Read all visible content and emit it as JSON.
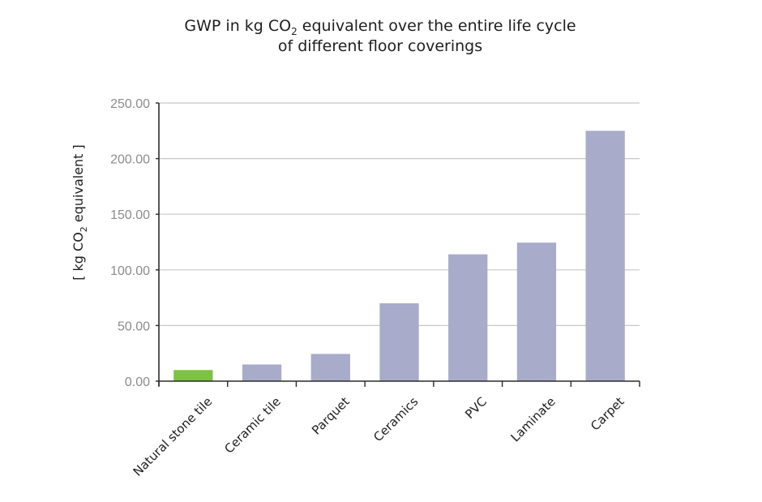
{
  "chart_data": {
    "type": "bar",
    "title": {
      "line1_before_sub": "GWP in kg CO",
      "line1_sub": "2",
      "line1_after_sub": " equivalent over the entire life cycle",
      "line2": "of different floor coverings"
    },
    "ylabel": {
      "before_sub": "[ kg CO",
      "sub": "2",
      "after_sub": " equivalent ]"
    },
    "xlabel": "",
    "categories": [
      "Natural stone tile",
      "Ceramic tile",
      "Parquet",
      "Ceramics",
      "PVC",
      "Laminate",
      "Carpet"
    ],
    "values": [
      10,
      15,
      24.5,
      70,
      114,
      124.5,
      225
    ],
    "bar_colors": [
      "#7dc242",
      "#a9abcb",
      "#a9abcb",
      "#a9abcb",
      "#a9abcb",
      "#a9abcb",
      "#a9abcb"
    ],
    "ylim": [
      0,
      250
    ],
    "yticks": [
      0,
      50,
      100,
      150,
      200,
      250
    ],
    "ytick_labels": [
      "0.00",
      "50.00",
      "100.00",
      "150.00",
      "200.00",
      "250.00"
    ],
    "grid": true,
    "legend": "none",
    "colors": {
      "highlight": "#7dc242",
      "bar": "#a9abcb",
      "gridline": "#c8c8c8",
      "axis": "#2a2a2a"
    }
  }
}
